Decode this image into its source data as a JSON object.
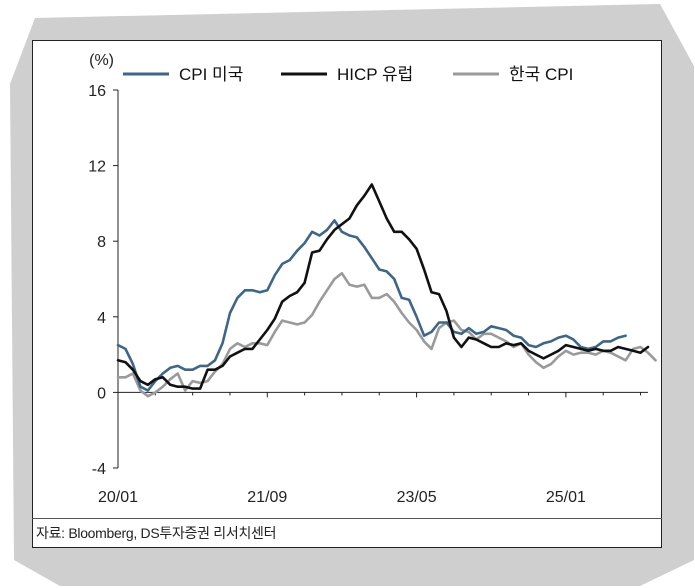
{
  "source_note": "자료: Bloomberg, DS투자증권 리서치센터",
  "colors": {
    "cpi_us": "#3e6688",
    "hicp_eu": "#111111",
    "cpi_kr": "#9a9a9a",
    "axis": "#222222"
  },
  "chart_data": {
    "type": "line",
    "title": "",
    "ylabel": "(%)",
    "xlabel": "",
    "ylim": [
      -4,
      16
    ],
    "yticks": [
      -4,
      0,
      4,
      8,
      12,
      16
    ],
    "ytick_labels": [
      "-4",
      "0",
      "4",
      "8",
      "12",
      "16"
    ],
    "x_start": "2020-01",
    "xticks": [
      0,
      20,
      40,
      60
    ],
    "xtick_labels": [
      "20/01",
      "21/09",
      "23/05",
      "25/01"
    ],
    "legend_position": "top",
    "series": [
      {
        "name": "CPI 미국",
        "color": "#3e6688",
        "start_index": 0,
        "values": [
          2.5,
          2.3,
          1.5,
          0.3,
          0.1,
          0.6,
          1.0,
          1.3,
          1.4,
          1.2,
          1.2,
          1.4,
          1.4,
          1.7,
          2.6,
          4.2,
          5.0,
          5.4,
          5.4,
          5.3,
          5.4,
          6.2,
          6.8,
          7.0,
          7.5,
          7.9,
          8.5,
          8.3,
          8.6,
          9.1,
          8.5,
          8.3,
          8.2,
          7.7,
          7.1,
          6.5,
          6.4,
          6.0,
          5.0,
          4.9,
          4.0,
          3.0,
          3.2,
          3.7,
          3.7,
          3.2,
          3.1,
          3.4,
          3.1,
          3.2,
          3.5,
          3.4,
          3.3,
          3.0,
          2.9,
          2.5,
          2.4,
          2.6,
          2.7,
          2.9,
          3.0,
          2.8,
          2.4,
          2.3,
          2.4,
          2.7,
          2.7,
          2.9,
          3.0
        ]
      },
      {
        "name": "HICP 유럽",
        "color": "#111111",
        "start_index": 0,
        "values": [
          1.7,
          1.6,
          1.2,
          0.6,
          0.4,
          0.7,
          0.8,
          0.4,
          0.3,
          0.3,
          0.2,
          0.2,
          1.2,
          1.2,
          1.4,
          1.9,
          2.1,
          2.3,
          2.3,
          2.8,
          3.3,
          3.9,
          4.8,
          5.1,
          5.3,
          5.8,
          7.4,
          7.5,
          8.1,
          8.6,
          8.9,
          9.2,
          9.9,
          10.4,
          11.0,
          10.1,
          9.2,
          8.5,
          8.5,
          8.1,
          7.6,
          6.5,
          5.3,
          5.2,
          4.3,
          2.9,
          2.4,
          2.9,
          2.8,
          2.6,
          2.4,
          2.4,
          2.6,
          2.5,
          2.6,
          2.2,
          2.0,
          1.8,
          2.0,
          2.2,
          2.5,
          2.4,
          2.3,
          2.2,
          2.3,
          2.2,
          2.2,
          2.4,
          2.3,
          2.2,
          2.1,
          2.4
        ]
      },
      {
        "name": "한국 CPI",
        "color": "#9a9a9a",
        "start_index": 0,
        "values": [
          0.8,
          0.8,
          1.0,
          0.1,
          -0.2,
          0.0,
          0.3,
          0.7,
          1.0,
          0.1,
          0.6,
          0.5,
          0.6,
          1.1,
          1.5,
          2.3,
          2.6,
          2.4,
          2.6,
          2.6,
          2.5,
          3.2,
          3.8,
          3.7,
          3.6,
          3.7,
          4.1,
          4.8,
          5.4,
          6.0,
          6.3,
          5.7,
          5.6,
          5.7,
          5.0,
          5.0,
          5.2,
          4.8,
          4.2,
          3.7,
          3.3,
          2.7,
          2.3,
          3.4,
          3.7,
          3.8,
          3.3,
          3.2,
          2.8,
          3.1,
          3.1,
          2.9,
          2.7,
          2.4,
          2.6,
          2.0,
          1.6,
          1.3,
          1.5,
          1.9,
          2.2,
          2.0,
          2.1,
          2.1,
          2.0,
          2.2,
          2.1,
          1.9,
          1.7,
          2.3,
          2.4,
          2.1,
          1.7
        ]
      }
    ]
  }
}
